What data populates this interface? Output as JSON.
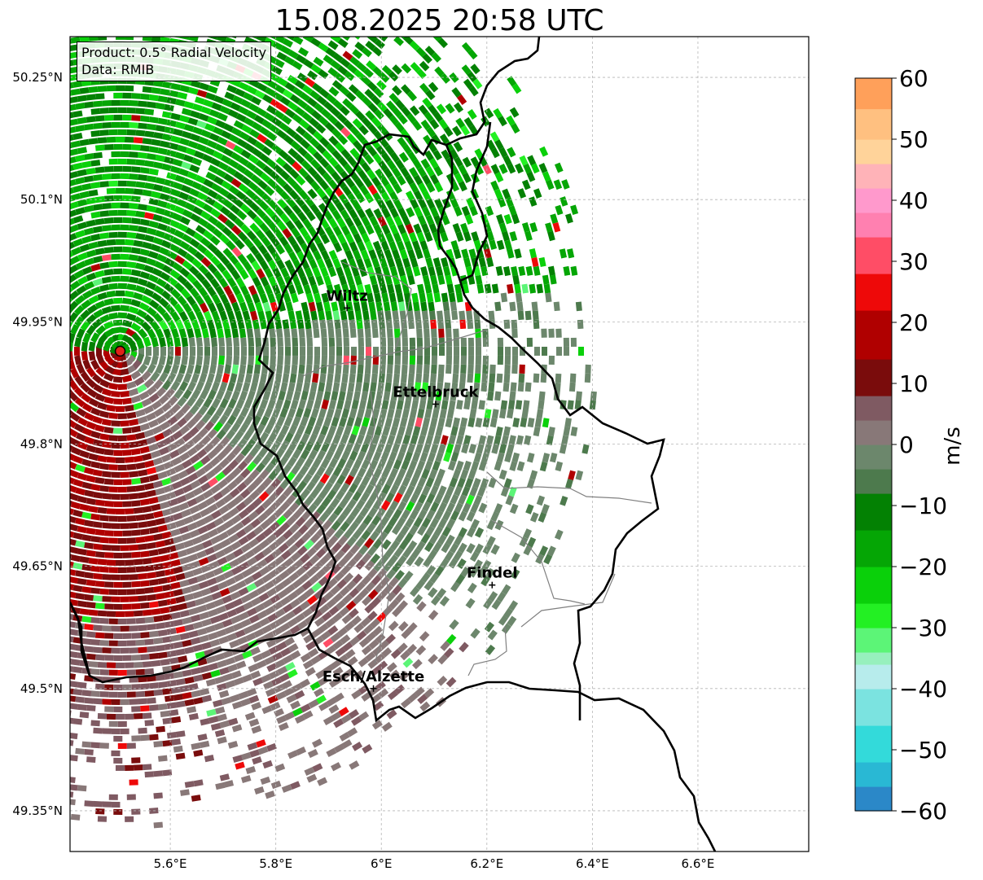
{
  "title": "15.08.2025 20:58 UTC",
  "info": {
    "line1": "Product: 0.5° Radial Velocity",
    "line2": "Data: RMIB"
  },
  "map": {
    "lon_range": [
      5.41,
      6.81
    ],
    "lat_range": [
      49.3,
      50.3
    ],
    "x_ticks": [
      {
        "value": 5.6,
        "label": "5.6°E"
      },
      {
        "value": 5.8,
        "label": "5.8°E"
      },
      {
        "value": 6.0,
        "label": "6°E"
      },
      {
        "value": 6.2,
        "label": "6.2°E"
      },
      {
        "value": 6.4,
        "label": "6.4°E"
      },
      {
        "value": 6.6,
        "label": "6.6°E"
      }
    ],
    "y_ticks": [
      {
        "value": 50.25,
        "label": "50.25°N"
      },
      {
        "value": 50.1,
        "label": "50.1°N"
      },
      {
        "value": 49.95,
        "label": "49.95°N"
      },
      {
        "value": 49.8,
        "label": "49.8°N"
      },
      {
        "value": 49.65,
        "label": "49.65°N"
      },
      {
        "value": 49.5,
        "label": "49.5°N"
      },
      {
        "value": 49.35,
        "label": "49.35°N"
      }
    ],
    "radar_site": {
      "lon": 5.505,
      "lat": 49.914
    },
    "cities": [
      {
        "name": "Wiltz",
        "lon": 5.935,
        "lat": 49.967
      },
      {
        "name": "Ettelbruck",
        "lon": 6.103,
        "lat": 49.849
      },
      {
        "name": "Findel",
        "lon": 6.21,
        "lat": 49.627
      },
      {
        "name": "Esch/Alzette",
        "lon": 5.985,
        "lat": 49.5
      }
    ]
  },
  "colorbar": {
    "label": "m/s",
    "min": -60,
    "max": 60,
    "ticks": [
      {
        "value": 60,
        "label": "60"
      },
      {
        "value": 50,
        "label": "50"
      },
      {
        "value": 40,
        "label": "40"
      },
      {
        "value": 30,
        "label": "30"
      },
      {
        "value": 20,
        "label": "20"
      },
      {
        "value": 10,
        "label": "10"
      },
      {
        "value": 0,
        "label": "0"
      },
      {
        "value": -10,
        "label": "−10"
      },
      {
        "value": -20,
        "label": "−20"
      },
      {
        "value": -30,
        "label": "−30"
      },
      {
        "value": -40,
        "label": "−40"
      },
      {
        "value": -50,
        "label": "−50"
      },
      {
        "value": -60,
        "label": "−60"
      }
    ],
    "stops": [
      {
        "from": -60,
        "to": -56,
        "color": "#2b88c8"
      },
      {
        "from": -56,
        "to": -52,
        "color": "#29b8d4"
      },
      {
        "from": -52,
        "to": -46,
        "color": "#33dada"
      },
      {
        "from": -46,
        "to": -40,
        "color": "#7be3e0"
      },
      {
        "from": -40,
        "to": -36,
        "color": "#b7ecec"
      },
      {
        "from": -36,
        "to": -34,
        "color": "#97f0bd"
      },
      {
        "from": -34,
        "to": -30,
        "color": "#5cf577"
      },
      {
        "from": -30,
        "to": -26,
        "color": "#23f023"
      },
      {
        "from": -26,
        "to": -20,
        "color": "#0ad00a"
      },
      {
        "from": -20,
        "to": -14,
        "color": "#05a605"
      },
      {
        "from": -14,
        "to": -8,
        "color": "#038103"
      },
      {
        "from": -8,
        "to": -4,
        "color": "#4d7a4d"
      },
      {
        "from": -4,
        "to": 0,
        "color": "#6c876c"
      },
      {
        "from": 0,
        "to": 4,
        "color": "#887878"
      },
      {
        "from": 4,
        "to": 8,
        "color": "#7f5a62"
      },
      {
        "from": 8,
        "to": 14,
        "color": "#7a0c0c"
      },
      {
        "from": 14,
        "to": 22,
        "color": "#b00000"
      },
      {
        "from": 22,
        "to": 28,
        "color": "#ee0909"
      },
      {
        "from": 28,
        "to": 34,
        "color": "#ff4d66"
      },
      {
        "from": 34,
        "to": 38,
        "color": "#ff80b0"
      },
      {
        "from": 38,
        "to": 42,
        "color": "#ff99cc"
      },
      {
        "from": 42,
        "to": 46,
        "color": "#ffb3b8"
      },
      {
        "from": 46,
        "to": 50,
        "color": "#ffd39a"
      },
      {
        "from": 50,
        "to": 55,
        "color": "#ffc080"
      },
      {
        "from": 55,
        "to": 60,
        "color": "#ffa05a"
      }
    ]
  },
  "colors": {
    "border_national": "#000000",
    "border_cantonal": "#808080",
    "radar_marker": "#e0231a",
    "grid": "#b5b5b5"
  }
}
